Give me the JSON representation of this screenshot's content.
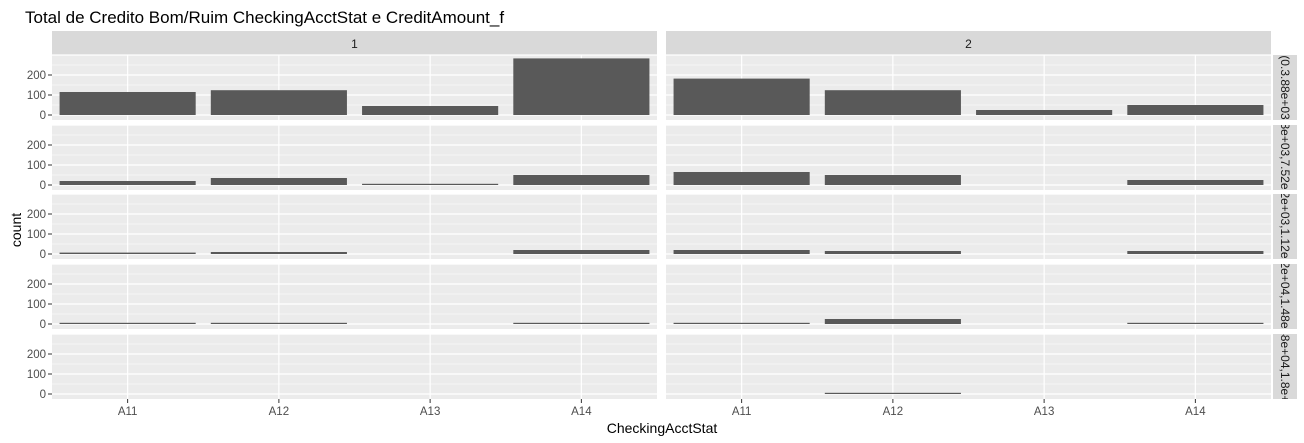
{
  "chart_data": {
    "type": "bar",
    "title": "Total de Credito Bom/Ruim CheckingAcctStat e CreditAmount_f",
    "xlabel": "CheckingAcctStat",
    "ylabel": "count",
    "categories": [
      "A11",
      "A12",
      "A13",
      "A14"
    ],
    "ylim": [
      0,
      300
    ],
    "y_ticks": [
      0,
      100,
      200
    ],
    "grid": true,
    "col_facets": [
      "1",
      "2"
    ],
    "row_facets": [
      "(0.3.88e+03",
      "(3.88e+03,7.52e+03]",
      "(7.52e+03,1.12e+04]",
      "(1.12e+04,1.48e+04]",
      "(1.48e+04,1.8e+04]"
    ],
    "panels": [
      {
        "row": 0,
        "col": 0,
        "values": [
          115,
          124,
          45,
          283
        ]
      },
      {
        "row": 0,
        "col": 1,
        "values": [
          182,
          124,
          25,
          50
        ]
      },
      {
        "row": 1,
        "col": 0,
        "values": [
          20,
          35,
          5,
          50
        ]
      },
      {
        "row": 1,
        "col": 1,
        "values": [
          65,
          50,
          0,
          25
        ]
      },
      {
        "row": 2,
        "col": 0,
        "values": [
          7,
          10,
          0,
          20
        ]
      },
      {
        "row": 2,
        "col": 1,
        "values": [
          20,
          15,
          0,
          15
        ]
      },
      {
        "row": 3,
        "col": 0,
        "values": [
          5,
          5,
          0,
          5
        ]
      },
      {
        "row": 3,
        "col": 1,
        "values": [
          5,
          25,
          0,
          5
        ]
      },
      {
        "row": 4,
        "col": 0,
        "values": [
          0,
          0,
          0,
          0
        ]
      },
      {
        "row": 4,
        "col": 1,
        "values": [
          0,
          5,
          0,
          0
        ]
      }
    ],
    "colors": {
      "bar": "#595959",
      "panel_bg": "#ebebeb",
      "strip_bg": "#d9d9d9",
      "grid": "#ffffff"
    }
  }
}
